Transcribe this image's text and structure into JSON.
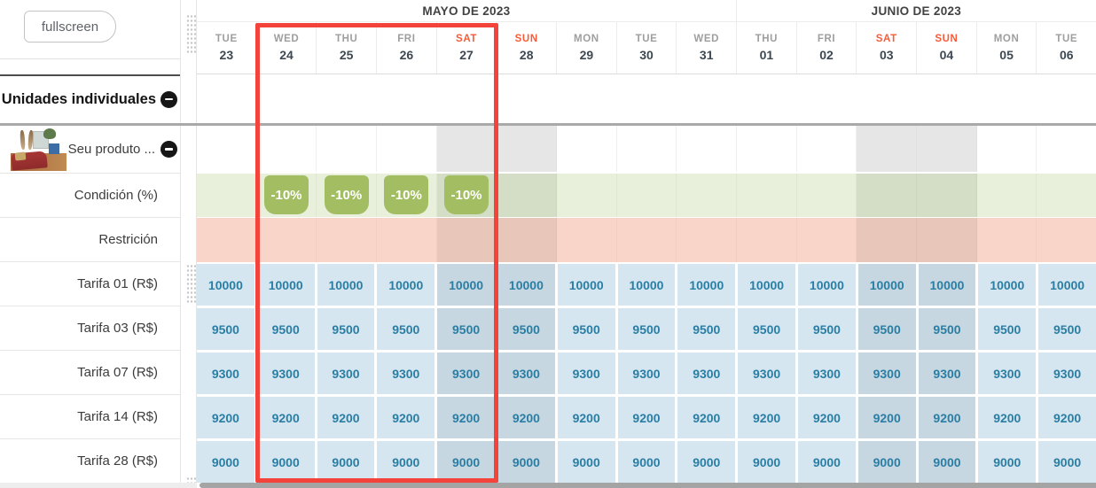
{
  "toolbar": {
    "fullscreen_label": "fullscreen"
  },
  "sidebar": {
    "section": {
      "label": "Unidades individuales",
      "collapse_icon": "minus-circle"
    },
    "product": {
      "label": "Seu produto ...",
      "collapse_icon": "minus-circle",
      "thumbnail": "living-room-photo"
    },
    "row_labels": [
      "Condición (%)",
      "Restrición",
      "Tarifa 01 (R$)",
      "Tarifa 03 (R$)",
      "Tarifa 07 (R$)",
      "Tarifa 14 (R$)",
      "Tarifa 28 (R$)"
    ]
  },
  "calendar": {
    "months": [
      {
        "label": "MAYO DE 2023",
        "col_span": 9
      },
      {
        "label": "JUNIO DE 2023",
        "col_span": 6
      }
    ],
    "days": [
      {
        "dow": "TUE",
        "num": "23",
        "weekend": false
      },
      {
        "dow": "WED",
        "num": "24",
        "weekend": false
      },
      {
        "dow": "THU",
        "num": "25",
        "weekend": false
      },
      {
        "dow": "FRI",
        "num": "26",
        "weekend": false
      },
      {
        "dow": "SAT",
        "num": "27",
        "weekend": true
      },
      {
        "dow": "SUN",
        "num": "28",
        "weekend": true
      },
      {
        "dow": "MON",
        "num": "29",
        "weekend": false
      },
      {
        "dow": "TUE",
        "num": "30",
        "weekend": false
      },
      {
        "dow": "WED",
        "num": "31",
        "weekend": false
      },
      {
        "dow": "THU",
        "num": "01",
        "weekend": false
      },
      {
        "dow": "FRI",
        "num": "02",
        "weekend": false
      },
      {
        "dow": "SAT",
        "num": "03",
        "weekend": true
      },
      {
        "dow": "SUN",
        "num": "04",
        "weekend": true
      },
      {
        "dow": "MON",
        "num": "05",
        "weekend": false
      },
      {
        "dow": "TUE",
        "num": "06",
        "weekend": false
      }
    ],
    "condition_row": {
      "badge_label": "-10%",
      "badge_day_indices": [
        1,
        2,
        3,
        4
      ]
    },
    "rate_rows": [
      {
        "label": "Tarifa 01 (R$)",
        "values": [
          "10000",
          "10000",
          "10000",
          "10000",
          "10000",
          "10000",
          "10000",
          "10000",
          "10000",
          "10000",
          "10000",
          "10000",
          "10000",
          "10000",
          "10000"
        ]
      },
      {
        "label": "Tarifa 03 (R$)",
        "values": [
          "9500",
          "9500",
          "9500",
          "9500",
          "9500",
          "9500",
          "9500",
          "9500",
          "9500",
          "9500",
          "9500",
          "9500",
          "9500",
          "9500",
          "9500"
        ]
      },
      {
        "label": "Tarifa 07 (R$)",
        "values": [
          "9300",
          "9300",
          "9300",
          "9300",
          "9300",
          "9300",
          "9300",
          "9300",
          "9300",
          "9300",
          "9300",
          "9300",
          "9300",
          "9300",
          "9300"
        ]
      },
      {
        "label": "Tarifa 14 (R$)",
        "values": [
          "9200",
          "9200",
          "9200",
          "9200",
          "9200",
          "9200",
          "9200",
          "9200",
          "9200",
          "9200",
          "9200",
          "9200",
          "9200",
          "9200",
          "9200"
        ]
      },
      {
        "label": "Tarifa 28 (R$)",
        "values": [
          "9000",
          "9000",
          "9000",
          "9000",
          "9000",
          "9000",
          "9000",
          "9000",
          "9000",
          "9000",
          "9000",
          "9000",
          "9000",
          "9000",
          "9000"
        ]
      }
    ],
    "selection": {
      "start_index": 1,
      "end_index": 4,
      "description": "red highlight from WED 24 to SAT 27"
    }
  },
  "colors": {
    "red_highlight": "#f4433a",
    "badge_green": "#a3bd62",
    "condition_row": "#e8efda",
    "condition_row_weekend": "#d4ddc5",
    "restriction_row": "#f9d4c9",
    "restriction_row_weekend": "#e9c6ba",
    "rate_cell": "#d5e6f0",
    "rate_cell_weekend": "#c6d7e1",
    "rate_text": "#2a7ea4",
    "weekend_grey": "#e6e6e6",
    "weekend_day_text": "#f75b39"
  }
}
